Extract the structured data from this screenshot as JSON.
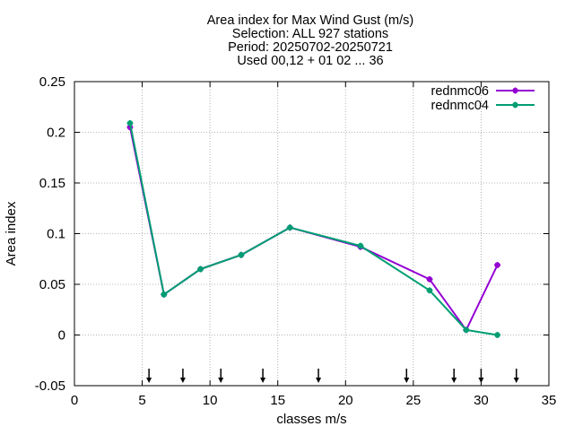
{
  "chart_data": {
    "type": "line",
    "title_lines": [
      "Area index  for Max Wind Gust (m/s)",
      "Selection: ALL    927 stations",
      "Period: 20250702-20250721",
      "Used 00,12 + 01 02 ... 36"
    ],
    "xlabel": "classes m/s",
    "ylabel": "Area index",
    "xlim": [
      0,
      35
    ],
    "ylim": [
      -0.05,
      0.25
    ],
    "xticks": [
      0,
      5,
      10,
      15,
      20,
      25,
      30,
      35
    ],
    "yticks": [
      -0.05,
      0,
      0.05,
      0.1,
      0.15,
      0.2,
      0.25
    ],
    "ytick_labels": [
      "-0.05",
      "0",
      "0.05",
      "0.1",
      "0.15",
      "0.2",
      "0.25"
    ],
    "grid": true,
    "legend_position": "top-right",
    "series": [
      {
        "name": "rednmc06",
        "color": "#9400d3",
        "x": [
          4.1,
          6.6,
          9.3,
          12.3,
          15.9,
          21.1,
          26.2,
          28.9,
          31.2
        ],
        "y": [
          0.205,
          0.04,
          0.065,
          0.079,
          0.106,
          0.087,
          0.055,
          0.005,
          0.069
        ]
      },
      {
        "name": "rednmc04",
        "color": "#009e73",
        "x": [
          4.1,
          6.6,
          9.3,
          12.3,
          15.9,
          21.1,
          26.2,
          28.9,
          31.2
        ],
        "y": [
          0.209,
          0.04,
          0.065,
          0.079,
          0.106,
          0.088,
          0.044,
          0.005,
          0.0
        ]
      }
    ],
    "arrow_markers_x": [
      5.5,
      8.0,
      10.8,
      13.9,
      18.0,
      24.5,
      28.0,
      30.0,
      32.6
    ]
  }
}
